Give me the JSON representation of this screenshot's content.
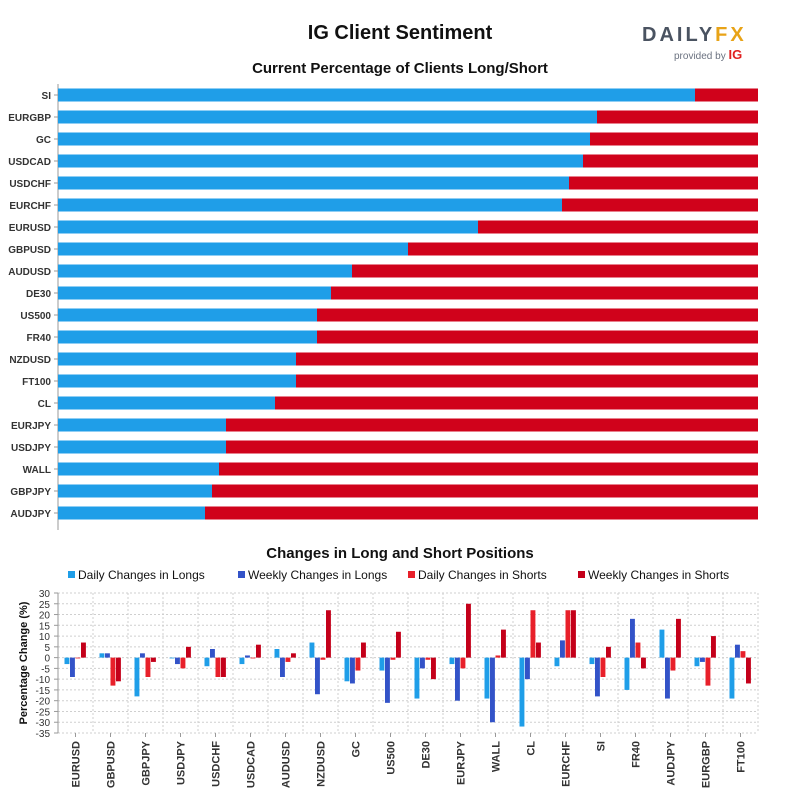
{
  "header": {
    "title": "IG Client Sentiment",
    "logo": {
      "main_left": "DAIL",
      "main_mid": "Y",
      "main_right": "FX",
      "sub": "provided by",
      "sub_brand": "IG"
    }
  },
  "colors": {
    "long": "#1f9ee8",
    "short": "#d0021b",
    "daily_longs": "#1f9ee8",
    "weekly_longs": "#3353c8",
    "daily_shorts": "#e8202a",
    "weekly_shorts": "#c4001a"
  },
  "chart_data": [
    {
      "type": "bar",
      "orientation": "horizontal",
      "stacked": true,
      "title": "Current Percentage of Clients Long/Short",
      "categories": [
        "SI",
        "EURGBP",
        "GC",
        "USDCAD",
        "USDCHF",
        "EURCHF",
        "EURUSD",
        "GBPUSD",
        "AUDUSD",
        "DE30",
        "US500",
        "FR40",
        "NZDUSD",
        "FT100",
        "CL",
        "EURJPY",
        "USDJPY",
        "WALL",
        "GBPJPY",
        "AUDJPY"
      ],
      "series": [
        {
          "values": [
            91,
            77,
            76,
            75,
            73,
            72,
            60,
            50,
            42,
            39,
            37,
            37,
            34,
            34,
            31,
            24,
            24,
            23,
            22,
            21
          ]
        },
        {
          "values": [
            9,
            23,
            24,
            25,
            27,
            28,
            40,
            50,
            58,
            61,
            63,
            63,
            66,
            66,
            69,
            76,
            76,
            77,
            78,
            79
          ]
        }
      ],
      "xlim": [
        0,
        100
      ]
    },
    {
      "type": "bar",
      "title": "Changes in Long and Short Positions",
      "ylabel": "Percentage Change (%)",
      "ylim": [
        -35,
        30
      ],
      "yticks": [
        30,
        25,
        20,
        15,
        10,
        5,
        0,
        -5,
        -10,
        -15,
        -20,
        -25,
        -30,
        -35
      ],
      "legend_position": "top",
      "categories": [
        "EURUSD",
        "GBPUSD",
        "GBPJPY",
        "USDJPY",
        "USDCHF",
        "USDCAD",
        "AUDUSD",
        "NZDUSD",
        "GC",
        "US500",
        "DE30",
        "EURJPY",
        "WALL",
        "CL",
        "EURCHF",
        "SI",
        "FR40",
        "AUDJPY",
        "EURGBP",
        "FT100"
      ],
      "series": [
        {
          "name": "Daily Changes in Longs",
          "values": [
            -3,
            2,
            -18,
            0,
            -4,
            -3,
            4,
            7,
            -11,
            -6,
            -19,
            -3,
            -19,
            -32,
            -4,
            -3,
            -15,
            13,
            -4,
            -19
          ]
        },
        {
          "name": "Weekly Changes in Longs",
          "values": [
            -9,
            2,
            2,
            -3,
            4,
            1,
            -9,
            -17,
            -12,
            -21,
            -5,
            -20,
            -30,
            -10,
            8,
            -18,
            18,
            -19,
            -2,
            6
          ]
        },
        {
          "name": "Daily Changes in Shorts",
          "values": [
            0,
            -13,
            -9,
            -5,
            -9,
            0,
            -2,
            -1,
            -6,
            -1,
            -1,
            -5,
            1,
            22,
            22,
            -9,
            7,
            -6,
            -13,
            3
          ]
        },
        {
          "name": "Weekly Changes in Shorts",
          "values": [
            7,
            -11,
            -2,
            5,
            -9,
            6,
            2,
            22,
            7,
            12,
            -10,
            25,
            13,
            7,
            22,
            5,
            -5,
            18,
            10,
            -12
          ]
        }
      ]
    }
  ]
}
